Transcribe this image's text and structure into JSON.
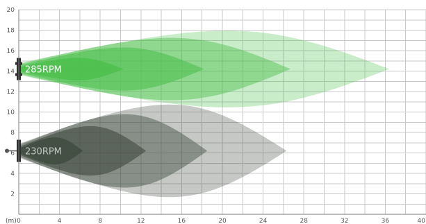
{
  "chart_data": {
    "type": "area",
    "title": "",
    "xlabel": "",
    "ylabel": "",
    "x_unit_label": "(m)",
    "xlim": [
      0,
      40
    ],
    "ylim": [
      0,
      20
    ],
    "x_ticks": [
      0,
      4,
      8,
      12,
      16,
      20,
      24,
      28,
      32,
      36,
      40
    ],
    "y_ticks": [
      2,
      4,
      6,
      8,
      10,
      12,
      14,
      16,
      18,
      20
    ],
    "grid": true,
    "series": [
      {
        "name": "285RPM",
        "color": "#4cbf4c",
        "center_y": 14.2,
        "zones": [
          {
            "reach": 36.4,
            "half_width": 4.8
          },
          {
            "reach": 26.7,
            "half_width": 3.9
          },
          {
            "reach": 18.2,
            "half_width": 2.7
          },
          {
            "reach": 10.3,
            "half_width": 1.4
          }
        ]
      },
      {
        "name": "230RPM",
        "color": "#3f4a3f",
        "center_y": 6.2,
        "zones": [
          {
            "reach": 26.3,
            "half_width": 5.8
          },
          {
            "reach": 18.5,
            "half_width": 4.6
          },
          {
            "reach": 12.5,
            "half_width": 3.1
          },
          {
            "reach": 6.3,
            "half_width": 1.7
          }
        ]
      }
    ]
  }
}
